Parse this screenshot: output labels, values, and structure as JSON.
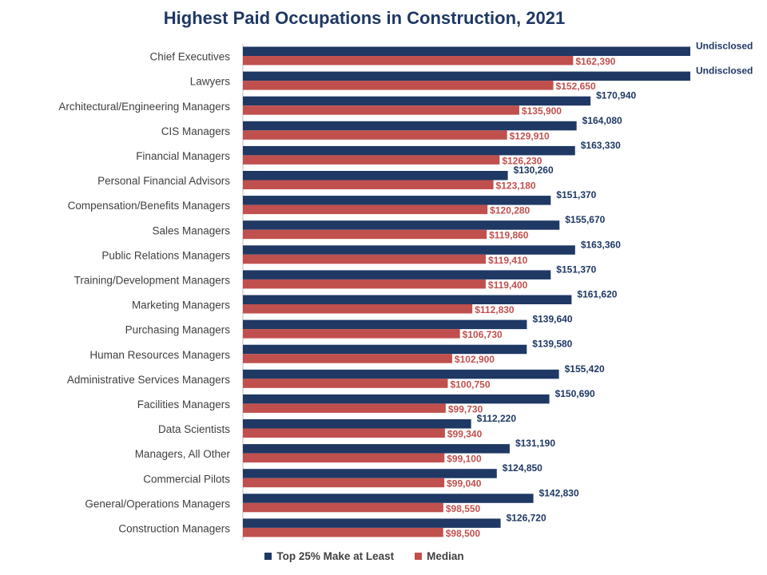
{
  "chart_data": {
    "type": "bar",
    "orientation": "horizontal",
    "title": "Highest Paid Occupations in Construction, 2021",
    "categories": [
      "Chief Executives",
      "Lawyers",
      "Architectural/Engineering Managers",
      "CIS Managers",
      "Financial Managers",
      "Personal Financial Advisors",
      "Compensation/Benefits Managers",
      "Sales Managers",
      "Public Relations Managers",
      "Training/Development Managers",
      "Marketing Managers",
      "Purchasing Managers",
      "Human Resources Managers",
      "Administrative Services Managers",
      "Facilities Managers",
      "Data Scientists",
      "Managers, All Other",
      "Commercial Pilots",
      "General/Operations Managers",
      "Construction Managers"
    ],
    "series": [
      {
        "name": "Top 25% Make at Least",
        "color": "#1f3864",
        "values": [
          null,
          null,
          170940,
          164080,
          163330,
          130260,
          151370,
          155670,
          163360,
          151370,
          161620,
          139640,
          139580,
          155420,
          150690,
          112220,
          131190,
          124850,
          142830,
          126720
        ],
        "labels": [
          "Undisclosed",
          "Undisclosed",
          "$170,940",
          "$164,080",
          "$163,330",
          "$130,260",
          "$151,370",
          "$155,670",
          "$163,360",
          "$151,370",
          "$161,620",
          "$139,640",
          "$139,580",
          "$155,420",
          "$150,690",
          "$112,220",
          "$131,190",
          "$124,850",
          "$142,830",
          "$126,720"
        ]
      },
      {
        "name": "Median",
        "color": "#c0504d",
        "values": [
          162390,
          152650,
          135900,
          129910,
          126230,
          123180,
          120280,
          119860,
          119410,
          119400,
          112830,
          106730,
          102900,
          100750,
          99730,
          99340,
          99100,
          99040,
          98550,
          98500
        ],
        "labels": [
          "$162,390",
          "$152,650",
          "$135,900",
          "$129,910",
          "$126,230",
          "$123,180",
          "$120,280",
          "$119,860",
          "$119,410",
          "$119,400",
          "$112,830",
          "$106,730",
          "$102,900",
          "$100,750",
          "$99,730",
          "$99,340",
          "$99,100",
          "$99,040",
          "$98,550",
          "$98,500"
        ]
      }
    ],
    "undisclosed_bar_value": 220000,
    "xlim": [
      0,
      220000
    ],
    "grid": false,
    "legend_position": "bottom"
  }
}
